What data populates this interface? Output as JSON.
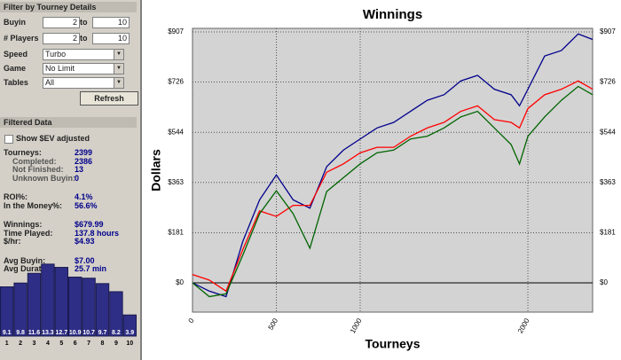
{
  "sidebar": {
    "filter_header": "Filter by Tourney Details",
    "filters": [
      {
        "label": "Buyin",
        "from": "2",
        "sep": "to",
        "to": "10"
      },
      {
        "label": "# Players",
        "from": "2",
        "sep": "to",
        "to": "10"
      }
    ],
    "selects": [
      {
        "label": "Speed",
        "value": "Turbo"
      },
      {
        "label": "Game",
        "value": "No Limit"
      },
      {
        "label": "Tables",
        "value": "All"
      }
    ],
    "refresh": "Refresh",
    "data_header": "Filtered Data",
    "checkbox": "Show $EV adjusted",
    "stats": [
      {
        "label": "Tourneys:",
        "value": "2399",
        "indent": false
      },
      {
        "label": "Completed:",
        "value": "2386",
        "indent": true
      },
      {
        "label": "Not Finished:",
        "value": "13",
        "indent": true
      },
      {
        "label": "Unknown Buyin:",
        "value": "0",
        "indent": true
      },
      {
        "label": "ROI%:",
        "value": "4.1%",
        "indent": false,
        "gap": true
      },
      {
        "label": "In the Money%:",
        "value": "56.6%",
        "indent": false
      },
      {
        "label": "Winnings:",
        "value": "$679.99",
        "indent": false,
        "gap": true
      },
      {
        "label": "Time Played:",
        "value": "137.8 hours",
        "indent": false
      },
      {
        "label": "$/hr:",
        "value": "$4.93",
        "indent": false
      },
      {
        "label": "Avg Buyin:",
        "value": "$7.00",
        "indent": false,
        "gap": true
      },
      {
        "label": "Avg Duration:",
        "value": "25.7 min",
        "indent": false
      }
    ],
    "histogram": {
      "categories": [
        1,
        2,
        3,
        4,
        5,
        6,
        7,
        8,
        9,
        10
      ],
      "values": [
        9.1,
        9.8,
        11.6,
        13.3,
        12.7,
        10.9,
        10.7,
        9.7,
        8.2,
        3.9
      ],
      "color": "#2e2e86"
    }
  },
  "chart_data": {
    "type": "line",
    "title": "Winnings",
    "xlabel": "Tourneys",
    "ylabel": "Dollars",
    "x": [
      0,
      100,
      200,
      300,
      400,
      500,
      600,
      700,
      800,
      900,
      1000,
      1100,
      1200,
      1300,
      1400,
      1500,
      1600,
      1700,
      1800,
      1900,
      1950,
      2000,
      2100,
      2200,
      2300,
      2386
    ],
    "series": [
      {
        "color": "#00008b",
        "values": [
          0,
          -30,
          -50,
          150,
          300,
          390,
          300,
          270,
          420,
          480,
          520,
          560,
          580,
          620,
          660,
          680,
          730,
          750,
          700,
          680,
          640,
          700,
          820,
          840,
          900,
          880
        ]
      },
      {
        "color": "#ff0000",
        "values": [
          30,
          10,
          -30,
          120,
          260,
          240,
          280,
          280,
          400,
          430,
          470,
          490,
          490,
          530,
          560,
          580,
          620,
          640,
          590,
          580,
          560,
          630,
          680,
          700,
          730,
          700
        ]
      },
      {
        "color": "#006400",
        "values": [
          0,
          -50,
          -40,
          100,
          250,
          333,
          250,
          125,
          330,
          380,
          430,
          470,
          480,
          520,
          530,
          560,
          600,
          620,
          560,
          500,
          430,
          530,
          600,
          660,
          710,
          680
        ]
      }
    ],
    "xlim": [
      0,
      2386
    ],
    "ylim": [
      -106,
      920
    ],
    "xticks": [
      0,
      500,
      1000,
      2000
    ],
    "yticks": [
      {
        "value": 0,
        "label": "$0"
      },
      {
        "value": 181,
        "label": "$181"
      },
      {
        "value": 363,
        "label": "$363"
      },
      {
        "value": 544,
        "label": "$544"
      },
      {
        "value": 726,
        "label": "$726"
      },
      {
        "value": 907,
        "label": "$907"
      }
    ],
    "grid": true
  }
}
